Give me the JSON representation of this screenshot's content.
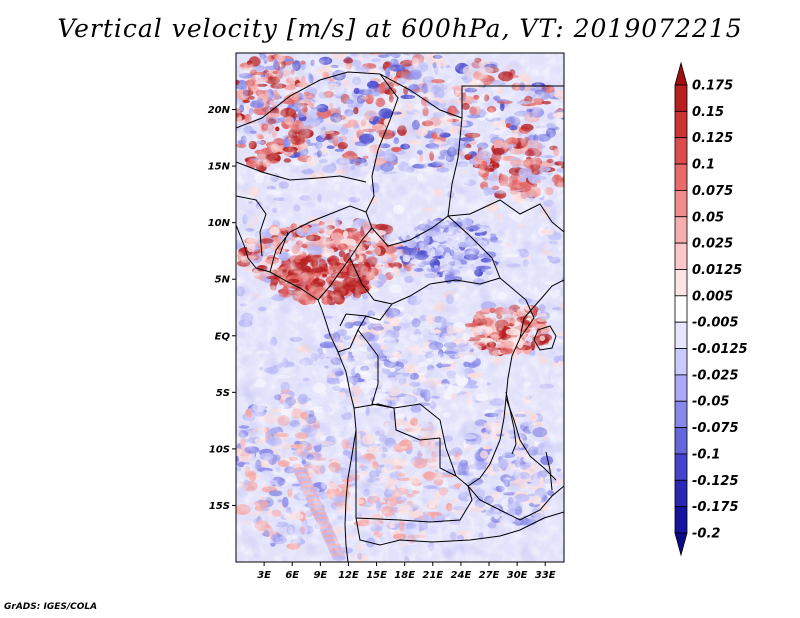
{
  "title": "Vertical velocity [m/s] at 600hPa, VT: 2019072215",
  "credit": "GrADS: IGES/COLA",
  "map": {
    "lon_range": [
      0,
      35
    ],
    "lat_range": [
      -20,
      25
    ],
    "lon_ticks": [
      {
        "value": 3,
        "label": "3E"
      },
      {
        "value": 6,
        "label": "6E"
      },
      {
        "value": 9,
        "label": "9E"
      },
      {
        "value": 12,
        "label": "12E"
      },
      {
        "value": 15,
        "label": "15E"
      },
      {
        "value": 18,
        "label": "18E"
      },
      {
        "value": 21,
        "label": "21E"
      },
      {
        "value": 24,
        "label": "24E"
      },
      {
        "value": 27,
        "label": "27E"
      },
      {
        "value": 30,
        "label": "30E"
      },
      {
        "value": 33,
        "label": "33E"
      }
    ],
    "lat_ticks": [
      {
        "value": 20,
        "label": "20N"
      },
      {
        "value": 15,
        "label": "15N"
      },
      {
        "value": 10,
        "label": "10N"
      },
      {
        "value": 5,
        "label": "5N"
      },
      {
        "value": 0,
        "label": "EQ"
      },
      {
        "value": -5,
        "label": "5S"
      },
      {
        "value": -10,
        "label": "10S"
      },
      {
        "value": -15,
        "label": "15S"
      }
    ]
  },
  "colorbar": {
    "labels": [
      "0.175",
      "0.15",
      "0.125",
      "0.1",
      "0.075",
      "0.05",
      "0.025",
      "0.0125",
      "0.005",
      "-0.005",
      "-0.0125",
      "-0.025",
      "-0.05",
      "-0.075",
      "-0.1",
      "-0.125",
      "-0.175",
      "-0.2"
    ],
    "colors": [
      "#a01010",
      "#b82020",
      "#cc3333",
      "#dc4c4c",
      "#e86a6a",
      "#f08c8c",
      "#f6aeae",
      "#fac8c8",
      "#fde4e4",
      "#ffffff",
      "#e6e6ff",
      "#cacaff",
      "#aaaaf6",
      "#8888ea",
      "#6666dc",
      "#4444cc",
      "#2828b4",
      "#1414a0",
      "#0a0a8a"
    ],
    "top_color": "#a01010",
    "bottom_color": "#0a0a8a"
  },
  "field_colors": {
    "strong_up": "#b82020",
    "up": "#e06060",
    "weak_up": "#f4a8a8",
    "faint_up": "#fadcdc",
    "neutral": "#f2f2ff",
    "faint_down": "#dcdcff",
    "weak_down": "#b8b8f6",
    "down": "#8888e8",
    "strong_down": "#5050d0"
  }
}
